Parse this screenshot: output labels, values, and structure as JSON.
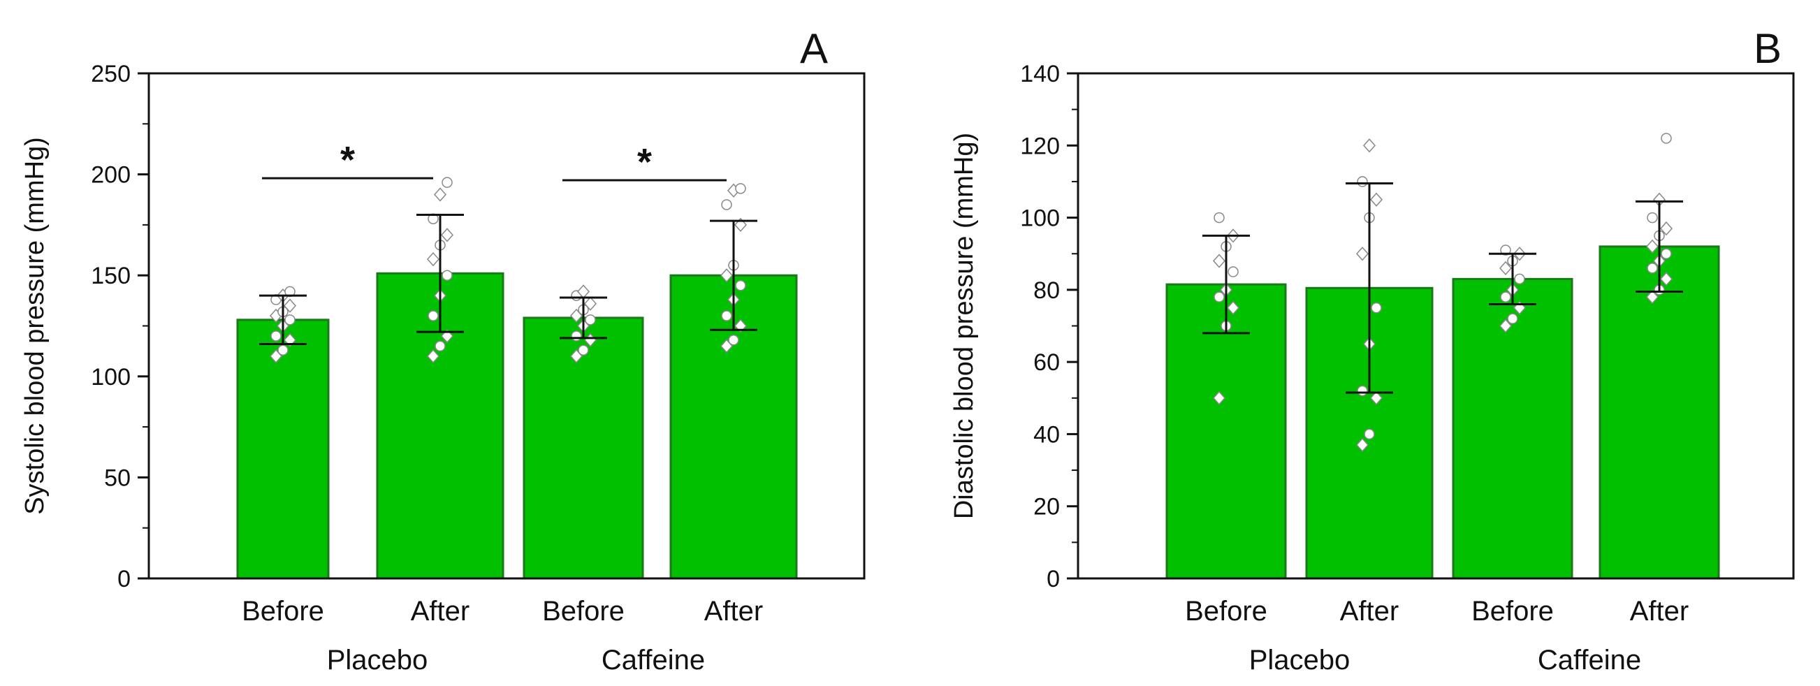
{
  "chart_data": [
    {
      "type": "bar",
      "panel_label": "A",
      "ylabel": "Systolic blood pressure (mmHg)",
      "ylim": [
        0,
        250
      ],
      "yticks": [
        0,
        50,
        100,
        150,
        200,
        250
      ],
      "categories": [
        "Before",
        "After",
        "Before",
        "After"
      ],
      "groups": [
        {
          "label": "Placebo",
          "categories": [
            0,
            1
          ]
        },
        {
          "label": "Caffeine",
          "categories": [
            2,
            3
          ]
        }
      ],
      "values": [
        128,
        151,
        129,
        150
      ],
      "error": [
        12,
        29,
        10,
        27
      ],
      "points": [
        [
          110,
          113,
          118,
          120,
          125,
          128,
          130,
          132,
          135,
          138,
          140,
          142
        ],
        [
          110,
          115,
          120,
          130,
          140,
          150,
          158,
          165,
          170,
          178,
          190,
          196
        ],
        [
          110,
          113,
          118,
          120,
          125,
          128,
          130,
          133,
          136,
          140,
          142
        ],
        [
          115,
          118,
          125,
          130,
          138,
          145,
          150,
          155,
          175,
          185,
          192,
          193
        ]
      ],
      "significance": [
        {
          "from": 0,
          "to": 1,
          "label": "*",
          "y": 205
        },
        {
          "from": 2,
          "to": 3,
          "label": "*",
          "y": 204
        }
      ],
      "bar_color": "#00c000",
      "bar_edge": "#1a7a1a",
      "point_color": "#ffffff"
    },
    {
      "type": "bar",
      "panel_label": "B",
      "ylabel": "Diastolic blood pressure (mmHg)",
      "ylim": [
        0,
        140
      ],
      "yticks": [
        0,
        20,
        40,
        60,
        80,
        100,
        120,
        140
      ],
      "categories": [
        "Before",
        "After",
        "Before",
        "After"
      ],
      "groups": [
        {
          "label": "Placebo",
          "categories": [
            0,
            1
          ]
        },
        {
          "label": "Caffeine",
          "categories": [
            2,
            3
          ]
        }
      ],
      "values": [
        81.5,
        80.5,
        83,
        92
      ],
      "error": [
        13.5,
        29,
        7,
        12.5
      ],
      "points": [
        [
          50,
          70,
          75,
          78,
          80,
          85,
          88,
          92,
          95,
          100
        ],
        [
          37,
          40,
          50,
          52,
          65,
          75,
          90,
          100,
          105,
          110,
          120
        ],
        [
          70,
          72,
          75,
          78,
          80,
          83,
          86,
          88,
          90,
          91
        ],
        [
          78,
          80,
          83,
          86,
          88,
          90,
          92,
          95,
          97,
          100,
          105,
          122
        ]
      ],
      "significance": [],
      "bar_color": "#00c000",
      "bar_edge": "#1a7a1a",
      "point_color": "#ffffff"
    }
  ]
}
